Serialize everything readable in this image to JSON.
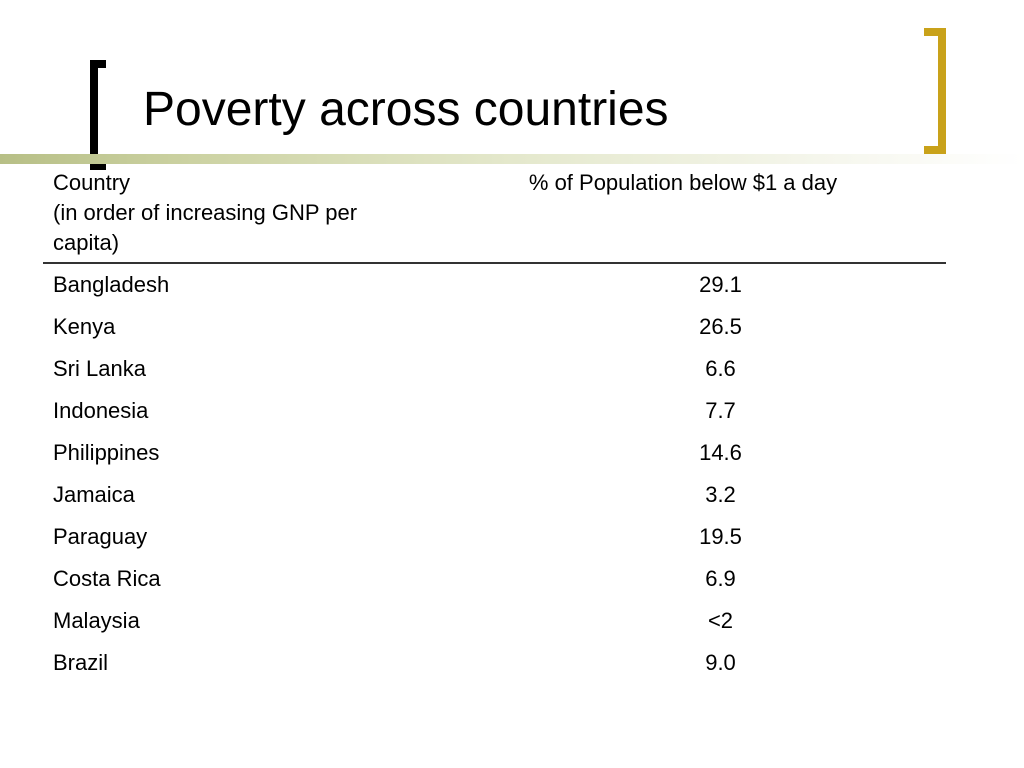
{
  "slide": {
    "title": "Poverty across countries",
    "accent_color": "#c9a21a",
    "title_bar_color": "#b7bf86"
  },
  "table": {
    "header": {
      "country_line1": "Country",
      "country_line2": "(in order of increasing GNP per",
      "country_line3": "capita)",
      "percent": "% of Population below $1 a day"
    },
    "rows": [
      {
        "country": "Bangladesh",
        "percent": "29.1"
      },
      {
        "country": "Kenya",
        "percent": "26.5"
      },
      {
        "country": "Sri Lanka",
        "percent": "6.6"
      },
      {
        "country": "Indonesia",
        "percent": "7.7"
      },
      {
        "country": "Philippines",
        "percent": "14.6"
      },
      {
        "country": "Jamaica",
        "percent": "3.2"
      },
      {
        "country": "Paraguay",
        "percent": "19.5"
      },
      {
        "country": "Costa Rica",
        "percent": "6.9"
      },
      {
        "country": "Malaysia",
        "percent": "<2"
      },
      {
        "country": "Brazil",
        "percent": "9.0"
      }
    ]
  }
}
